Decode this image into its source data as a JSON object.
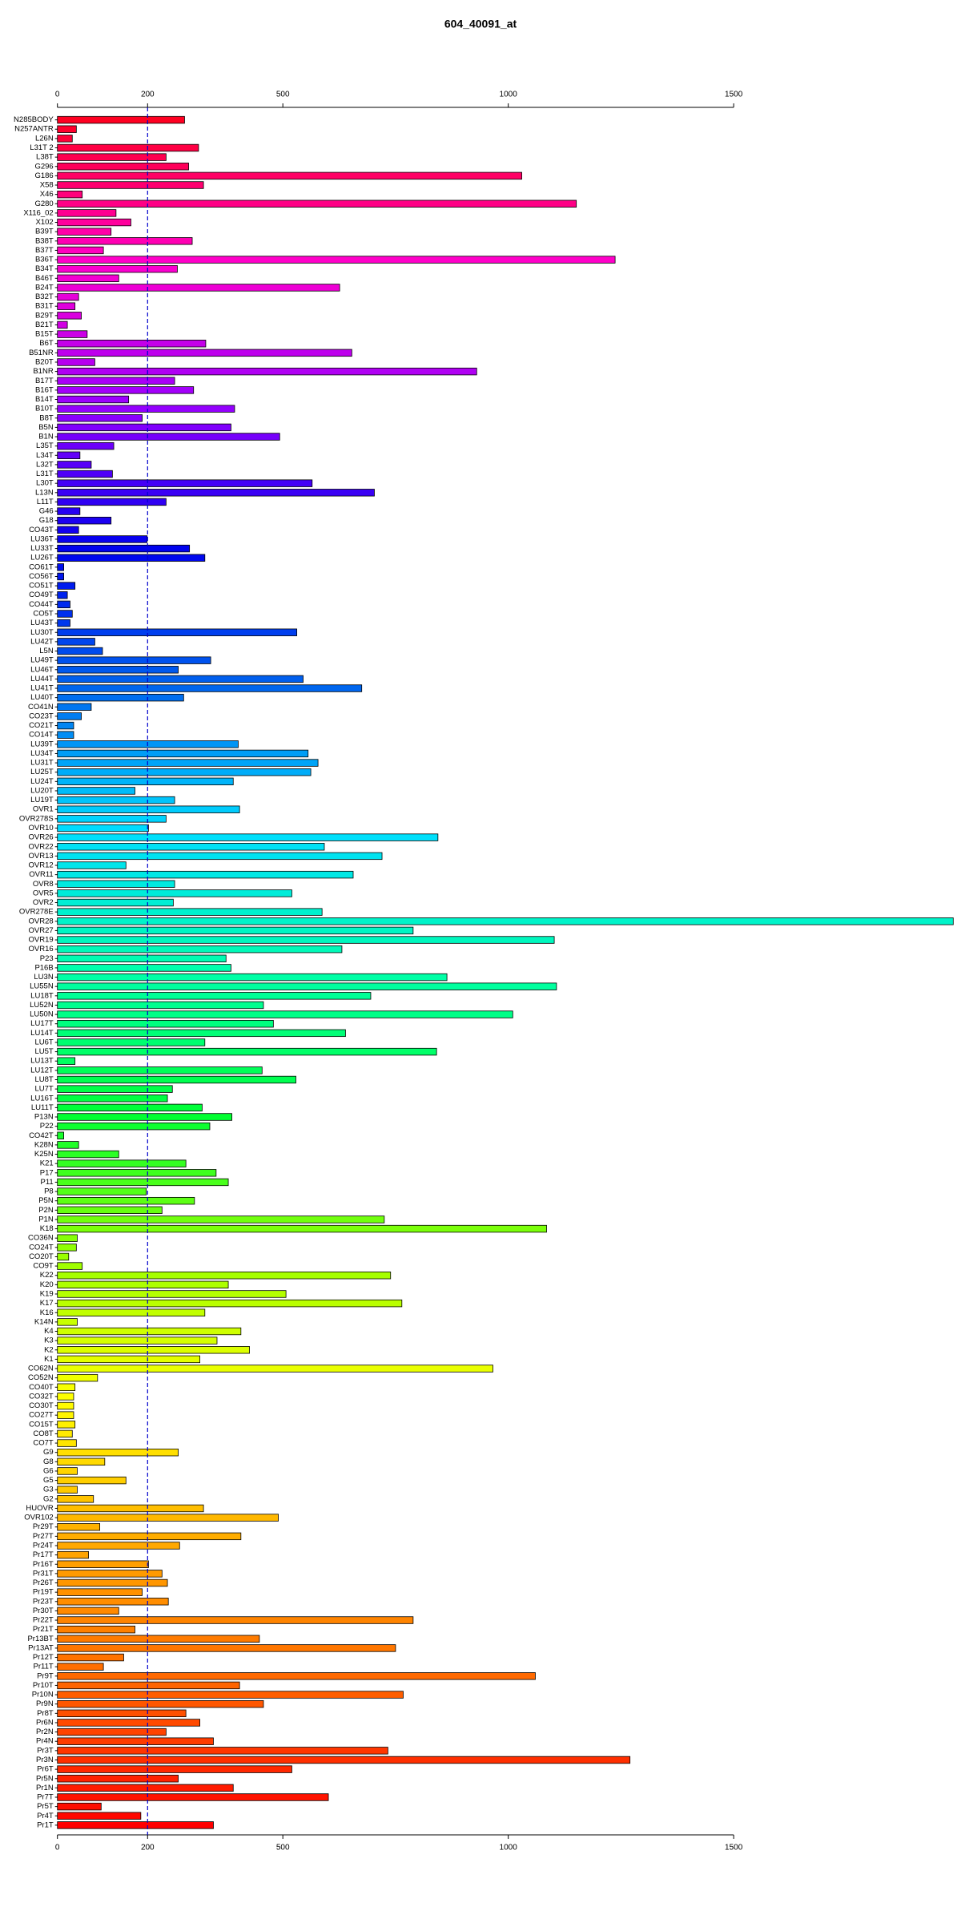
{
  "chart_data": {
    "type": "barh",
    "title": "604_40091_at",
    "categories": [
      "N285BODY",
      "N257ANTR",
      "L26N",
      "L31T 2",
      "L38T",
      "G296",
      "G186",
      "X58",
      "X46",
      "G280",
      "X116_02",
      "X102",
      "B39T",
      "B38T",
      "B37T",
      "B36T",
      "B34T",
      "B46T",
      "B24T",
      "B32T",
      "B31T",
      "B29T",
      "B21T",
      "B15T",
      "B6T",
      "B51NR",
      "B20T",
      "B1NR",
      "B17T",
      "B16T",
      "B14T",
      "B10T",
      "B8T",
      "B5N",
      "B1N",
      "L35T",
      "L34T",
      "L32T",
      "L31T",
      "L30T",
      "L13N",
      "L11T",
      "G46",
      "G18",
      "CO43T",
      "LU36T",
      "LU33T",
      "LU26T",
      "CO61T",
      "CO56T",
      "CO51T",
      "CO49T",
      "CO44T",
      "CO5T",
      "LU43T",
      "LU30T",
      "LU42T",
      "L5N",
      "LU49T",
      "LU46T",
      "LU44T",
      "LU41T",
      "LU40T",
      "CO41N",
      "CO23T",
      "CO21T",
      "CO14T",
      "LU39T",
      "LU34T",
      "LU31T",
      "LU25T",
      "LU24T",
      "LU20T",
      "LU19T",
      "OVR1",
      "OVR278S",
      "OVR10",
      "OVR26",
      "OVR22",
      "OVR13",
      "OVR12",
      "OVR11",
      "OVR8",
      "OVR5",
      "OVR2",
      "OVR278E",
      "OVR28",
      "OVR27",
      "OVR19",
      "OVR16",
      "P23",
      "P16B",
      "LU3N",
      "LU55N",
      "LU18T",
      "LU52N",
      "LU50N",
      "LU17T",
      "LU14T",
      "LU6T",
      "LU5T",
      "LU13T",
      "LU12T",
      "LU8T",
      "LU7T",
      "LU16T",
      "LU11T",
      "P13N",
      "P22",
      "CO42T",
      "K28N",
      "K25N",
      "K21",
      "P17",
      "P11",
      "P8",
      "P5N",
      "P2N",
      "P1N",
      "K18",
      "CO36N",
      "CO24T",
      "CO20T",
      "CO9T",
      "K22",
      "K20",
      "K19",
      "K17",
      "K16",
      "K14N",
      "K4",
      "K3",
      "K2",
      "K1",
      "CO62N",
      "CO52N",
      "CO40T",
      "CO32T",
      "CO30T",
      "CO27T",
      "CO15T",
      "CO8T",
      "CO7T",
      "G9",
      "G8",
      "G6",
      "G5",
      "G3",
      "G2",
      "HUOVR",
      "OVR102",
      "Pr29T",
      "Pr27T",
      "Pr24T",
      "Pr17T",
      "Pr16T",
      "Pr31T",
      "Pr26T",
      "Pr19T",
      "Pr23T",
      "Pr30T",
      "Pr22T",
      "Pr21T",
      "Pr13BT",
      "Pr13AT",
      "Pr12T",
      "Pr11T",
      "Pr9T",
      "Pr10T",
      "Pr10N",
      "Pr9N",
      "Pr8T",
      "Pr6N",
      "Pr2N",
      "Pr4N",
      "Pr3T",
      "Pr3N",
      "Pr6T",
      "Pr5N",
      "Pr1N",
      "Pr7T",
      "Pr5T",
      "Pr4T",
      "Pr1T"
    ],
    "values": [
      282,
      42,
      33,
      313,
      241,
      291,
      1030,
      324,
      55,
      1151,
      130,
      163,
      119,
      299,
      102,
      1237,
      266,
      136,
      626,
      47,
      39,
      53,
      22,
      66,
      329,
      653,
      83,
      930,
      260,
      302,
      158,
      393,
      188,
      385,
      493,
      125,
      50,
      75,
      122,
      565,
      703,
      241,
      50,
      119,
      47,
      199,
      293,
      327,
      14,
      14,
      39,
      22,
      28,
      33,
      28,
      531,
      83,
      100,
      340,
      268,
      545,
      675,
      280,
      75,
      53,
      36,
      36,
      401,
      556,
      578,
      562,
      390,
      172,
      260,
      404,
      241,
      202,
      844,
      592,
      720,
      152,
      656,
      260,
      520,
      257,
      587,
      1987,
      789,
      1102,
      631,
      374,
      385,
      864,
      1107,
      695,
      457,
      1010,
      479,
      639,
      327,
      841,
      39,
      454,
      529,
      255,
      244,
      321,
      387,
      338,
      14,
      47,
      136,
      285,
      352,
      379,
      197,
      304,
      232,
      725,
      1085,
      44,
      42,
      25,
      55,
      739,
      379,
      507,
      764,
      327,
      44,
      407,
      354,
      426,
      316,
      966,
      89,
      39,
      36,
      36,
      36,
      39,
      33,
      42,
      268,
      105,
      44,
      152,
      44,
      80,
      324,
      490,
      94,
      407,
      271,
      69,
      202,
      232,
      244,
      188,
      246,
      136,
      789,
      172,
      448,
      750,
      147,
      102,
      1060,
      404,
      767,
      457,
      285,
      316,
      241,
      346,
      733,
      1270,
      520,
      268,
      390,
      601,
      97,
      185,
      346
    ],
    "palette": [
      "#ff0022",
      "#ff00cc",
      "#9900ff",
      "#0000ee",
      "#0066ee",
      "#00ddff",
      "#00ffaa",
      "#00ff33",
      "#99ff00",
      "#ffff00",
      "#ffaa00",
      "#ff6600",
      "#ff0000"
    ],
    "xlim": [
      0,
      1990
    ],
    "xticks": [
      0,
      200,
      500,
      1000,
      1500
    ],
    "reference_line": 200,
    "reference_color": "#0000cc"
  }
}
